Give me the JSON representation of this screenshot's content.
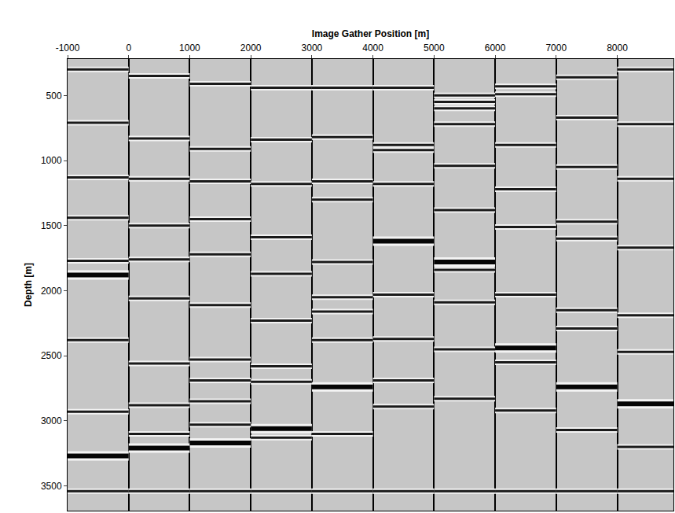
{
  "chart_data": {
    "type": "image_gathers",
    "x_label": "Image Gather Position [m]",
    "y_label": "Depth [m]",
    "xlim": [
      -1000,
      8920
    ],
    "xticks": [
      -1000,
      0,
      1000,
      2000,
      3000,
      4000,
      5000,
      6000,
      7000,
      8000
    ],
    "ylim": [
      220,
      3690
    ],
    "yticks": [
      500,
      1000,
      1500,
      2000,
      2500,
      3000,
      3500
    ],
    "grid": true,
    "gathers": [
      {
        "position": -1000,
        "reflectors": [
          300,
          710,
          1130,
          1440,
          1770,
          1880,
          2380,
          2930,
          3270,
          3540
        ],
        "strong": [
          1880,
          3270
        ]
      },
      {
        "position": 0,
        "reflectors": [
          350,
          830,
          1140,
          1500,
          1760,
          2060,
          2560,
          2880,
          3100,
          3210,
          3540
        ],
        "strong": [
          3210
        ]
      },
      {
        "position": 1000,
        "reflectors": [
          410,
          910,
          1160,
          1450,
          1720,
          2110,
          2530,
          2690,
          2850,
          3030,
          3170,
          3540
        ],
        "strong": [
          3170
        ]
      },
      {
        "position": 2000,
        "reflectors": [
          440,
          840,
          1180,
          1590,
          1870,
          2230,
          2580,
          2700,
          3060,
          3130,
          3540
        ],
        "strong": [
          3060
        ]
      },
      {
        "position": 3000,
        "reflectors": [
          440,
          820,
          1160,
          1300,
          1780,
          2050,
          2160,
          2380,
          2740,
          3100,
          3540
        ],
        "strong": [
          2740
        ]
      },
      {
        "position": 4000,
        "reflectors": [
          440,
          880,
          920,
          1180,
          1620,
          2030,
          2370,
          2690,
          2890,
          3540
        ],
        "strong": [
          1620
        ]
      },
      {
        "position": 5000,
        "reflectors": [
          500,
          550,
          600,
          720,
          1040,
          1380,
          1780,
          1840,
          2090,
          2450,
          2830,
          3540
        ],
        "strong": [
          1780
        ]
      },
      {
        "position": 6000,
        "reflectors": [
          430,
          490,
          880,
          1220,
          1510,
          2030,
          2440,
          2550,
          2920,
          3540
        ],
        "strong": [
          2440
        ]
      },
      {
        "position": 7000,
        "reflectors": [
          360,
          670,
          1050,
          1470,
          1600,
          2150,
          2290,
          2740,
          3070,
          3540
        ],
        "strong": [
          2740
        ]
      },
      {
        "position": 8000,
        "reflectors": [
          300,
          720,
          1140,
          1670,
          2190,
          2470,
          2870,
          3200,
          3540
        ],
        "strong": [
          2870
        ]
      }
    ]
  }
}
